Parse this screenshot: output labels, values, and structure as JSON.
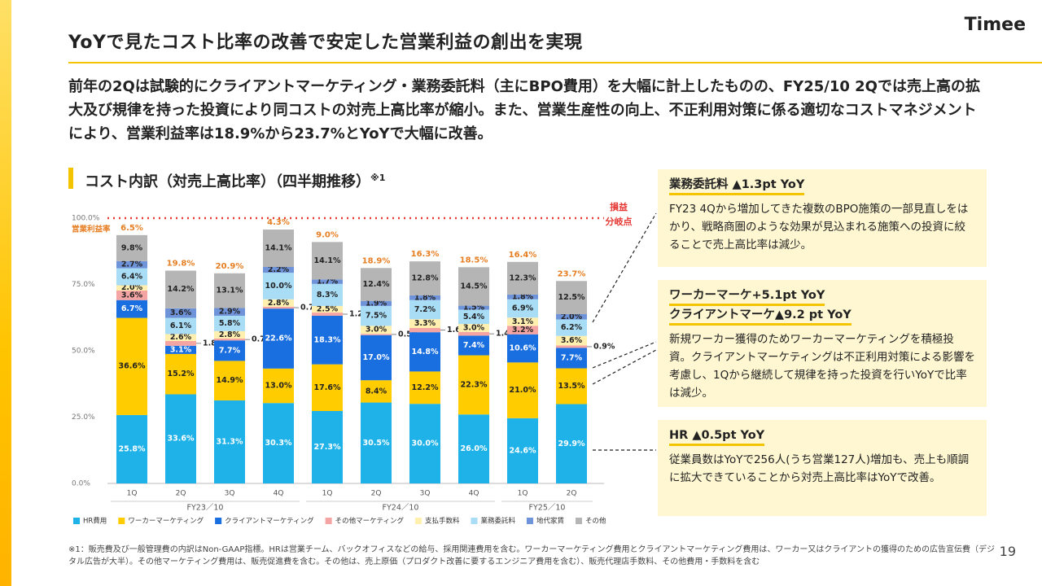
{
  "header": {
    "title": "YoYで見たコスト比率の改善で安定した営業利益の創出を実現",
    "logo": "Timee",
    "description": "前年の2Qは試験的にクライアントマーケティング・業務委託料（主にBPO費用）を大幅に計上したものの、FY25/10 2Qでは売上高の拡大及び規律を持った投資により同コストの対売上高比率が縮小。また、営業生産性の向上、不正利用対策に係る適切なコストマネジメントにより、営業利益率は18.9%から23.7%とYoYで大幅に改善。"
  },
  "section": {
    "title": "コスト内訳（対売上高比率）（四半期推移）",
    "note_mark": "※1"
  },
  "chart_data": {
    "type": "bar",
    "stacked": true,
    "ylim": [
      0,
      100
    ],
    "yticks": [
      "0.0%",
      "25.0%",
      "50.0%",
      "75.0%",
      "100.0%"
    ],
    "categories": [
      "1Q",
      "2Q",
      "3Q",
      "4Q",
      "1Q",
      "2Q",
      "3Q",
      "4Q",
      "1Q",
      "2Q"
    ],
    "groups": [
      {
        "label": "FY23／10",
        "start": 0,
        "end": 3
      },
      {
        "label": "FY24／10",
        "start": 4,
        "end": 7
      },
      {
        "label": "FY25／10",
        "start": 8,
        "end": 9
      }
    ],
    "series": [
      {
        "name": "HR費用",
        "color": "#1fb2e8",
        "labelColor": "#ffffff",
        "values": [
          25.8,
          33.6,
          31.3,
          30.3,
          27.3,
          30.5,
          30.0,
          26.0,
          24.6,
          29.9
        ],
        "labels": [
          "25.8%",
          "33.6%",
          "31.3%",
          "30.3%",
          "27.3%",
          "30.5%",
          "30.0%",
          "26.0%",
          "24.6%",
          "29.9%"
        ]
      },
      {
        "name": "ワーカーマーケティング",
        "color": "#ffcc00",
        "labelColor": "#222222",
        "values": [
          36.6,
          15.2,
          14.9,
          13.0,
          17.6,
          8.4,
          12.2,
          22.3,
          21.0,
          13.5
        ],
        "labels": [
          "36.6%",
          "15.2%",
          "14.9%",
          "13.0%",
          "17.6%",
          "8.4%",
          "12.2%",
          "22.3%",
          "21.0%",
          "13.5%"
        ]
      },
      {
        "name": "クライアントマーケティング",
        "color": "#1a6fe0",
        "labelColor": "#ffffff",
        "values": [
          6.7,
          3.1,
          7.7,
          22.6,
          18.3,
          17.0,
          14.8,
          7.4,
          10.6,
          7.7
        ],
        "labels": [
          "6.7%",
          "3.1%",
          "7.7%",
          "22.6%",
          "18.3%",
          "17.0%",
          "14.8%",
          "7.4%",
          "10.6%",
          "7.7%"
        ]
      },
      {
        "name": "その他マーケティング",
        "color": "#f5a4a4",
        "labelColor": "#222222",
        "values": [
          3.6,
          1.8,
          0.7,
          0.7,
          1.2,
          0.5,
          1.6,
          1.4,
          3.2,
          0.9
        ],
        "labels": [
          "3.6%",
          "1.8%",
          "0.7%",
          "0.7%",
          "1.2%",
          "0.5%",
          "1.6%",
          "1.4%",
          "3.2%",
          "0.9%"
        ],
        "outside": [
          false,
          true,
          true,
          true,
          true,
          true,
          true,
          true,
          false,
          true
        ]
      },
      {
        "name": "支払手数料",
        "color": "#fff0b0",
        "labelColor": "#222222",
        "values": [
          2.0,
          2.6,
          2.8,
          2.8,
          2.5,
          3.0,
          3.3,
          3.0,
          3.1,
          3.6
        ],
        "labels": [
          "2.0%",
          "2.6%",
          "2.8%",
          "2.8%",
          "2.5%",
          "3.0%",
          "3.3%",
          "3.0%",
          "3.1%",
          "3.6%"
        ]
      },
      {
        "name": "業務委託料",
        "color": "#a9dcf5",
        "labelColor": "#222222",
        "values": [
          6.4,
          6.1,
          5.8,
          10.0,
          8.3,
          7.5,
          7.2,
          5.4,
          6.9,
          6.2
        ],
        "labels": [
          "6.4%",
          "6.1%",
          "5.8%",
          "10.0%",
          "8.3%",
          "7.5%",
          "7.2%",
          "5.4%",
          "6.9%",
          "6.2%"
        ]
      },
      {
        "name": "地代家賃",
        "color": "#6f93d9",
        "labelColor": "#222222",
        "values": [
          2.7,
          3.6,
          2.9,
          2.2,
          1.7,
          1.9,
          1.8,
          1.5,
          1.8,
          2.0
        ],
        "labels": [
          "2.7%",
          "3.6%",
          "2.9%",
          "2.2%",
          "1.7%",
          "1.9%",
          "1.8%",
          "1.5%",
          "1.8%",
          "2.0%"
        ]
      },
      {
        "name": "その他",
        "color": "#b5b5b5",
        "labelColor": "#222222",
        "values": [
          9.8,
          14.2,
          13.1,
          14.1,
          14.1,
          12.4,
          12.8,
          14.5,
          12.3,
          12.5
        ],
        "labels": [
          "9.8%",
          "14.2%",
          "13.1%",
          "14.1%",
          "14.1%",
          "12.4%",
          "12.8%",
          "14.5%",
          "12.3%",
          "12.5%"
        ]
      }
    ],
    "operating_margin": {
      "name": "営業利益率",
      "values": [
        6.5,
        19.8,
        20.9,
        4.3,
        9.0,
        18.9,
        16.3,
        18.5,
        16.4,
        23.7
      ],
      "labels": [
        "6.5%",
        "19.8%",
        "20.9%",
        "4.3%",
        "9.0%",
        "18.9%",
        "16.3%",
        "18.5%",
        "16.4%",
        "23.7%"
      ],
      "color": "#e67e22"
    },
    "breakeven": {
      "value": 100,
      "label_line1": "損益",
      "label_line2": "分岐点",
      "color": "#e53935"
    }
  },
  "panels": [
    {
      "heading": "業務委託料 ▲1.3pt YoY",
      "body": "FY23 4Qから増加してきた複数のBPO施策の一部見直しをはかり、戦略商圏のような効果が見込まれる施策への投資に絞ることで売上高比率は減少。"
    },
    {
      "heading_line1": "ワーカーマーケ+5.1pt YoY",
      "heading_line2": "クライアントマーケ▲9.2 pt YoY",
      "body": "新規ワーカー獲得のためワーカーマーケティングを積極投資。クライアントマーケティングは不正利用対策による影響を考慮し、1Qから継続して規律を持った投資を行いYoYで比率は減少。"
    },
    {
      "heading": "HR ▲0.5pt YoY",
      "body": "従業員数はYoYで256人(うち営業127人)増加も、売上も順調に拡大できていることから対売上高比率はYoYで改善。"
    }
  ],
  "footnote": "※1：販売費及び一般管理費の内訳はNon-GAAP指標。HRは営業チーム、バックオフィスなどの給与、採用関連費用を含む。ワーカーマーケティング費用とクライアントマーケティング費用は、ワーカー又はクライアントの獲得のための広告宣伝費（デジタル広告が大半）。その他マーケティング費用は、販売促進費を含む。その他は、売上原価（プロダクト改善に要するエンジニア費用を含む）、販売代理店手数料、その他費用・手数料を含む",
  "page_number": "19"
}
